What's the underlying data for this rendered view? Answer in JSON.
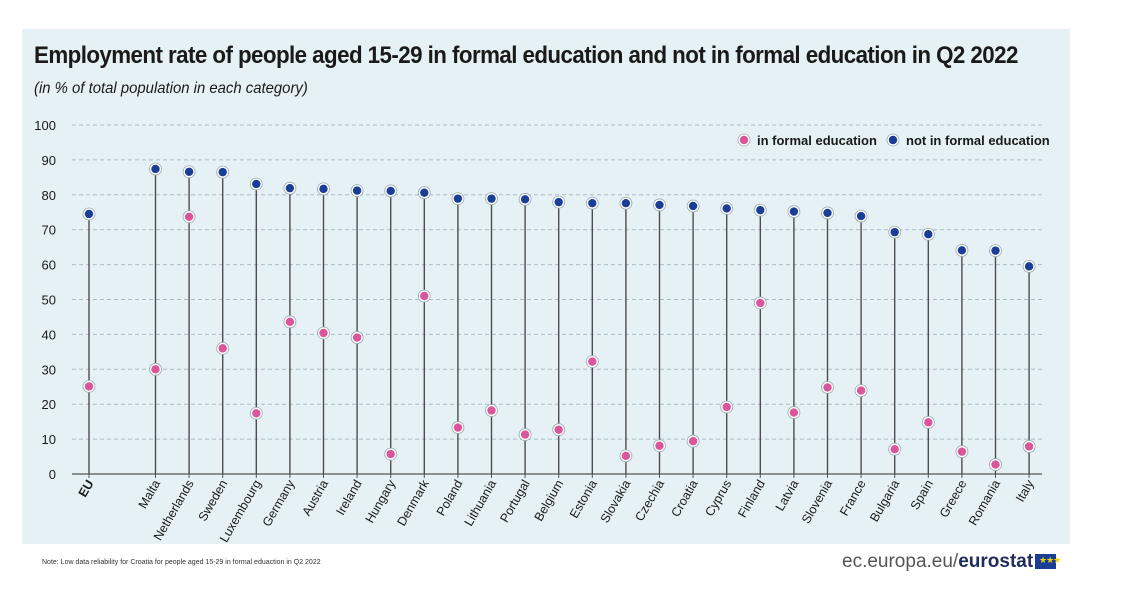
{
  "title": "Employment rate of people aged 15-29 in formal education and not in formal education in Q2 2022",
  "subtitle": "(in % of total population in each category)",
  "note": "Note: Low data reliability for Croatia for people aged 15-29 in formal eduaction in Q2 2022",
  "footer": {
    "prefix": "ec.europa.eu/",
    "brand": "eurostat"
  },
  "chart_data": {
    "type": "scatter",
    "title": "Employment rate of people aged 15-29 in formal education and not in formal education in Q2 2022",
    "ylim": [
      0,
      100
    ],
    "yticks": [
      0,
      10,
      20,
      30,
      40,
      50,
      60,
      70,
      80,
      90,
      100
    ],
    "grid": true,
    "legend_position": "top-right",
    "categories": [
      "EU",
      "Malta",
      "Netherlands",
      "Sweden",
      "Luxembourg",
      "Germany",
      "Austria",
      "Ireland",
      "Hungary",
      "Denmark",
      "Poland",
      "Lithuania",
      "Portugal",
      "Belgium",
      "Estonia",
      "Slovakia",
      "Czechia",
      "Croatia",
      "Cyprus",
      "Finland",
      "Latvia",
      "Slovenia",
      "France",
      "Bulgaria",
      "Spain",
      "Greece",
      "Romania",
      "Italy"
    ],
    "series": [
      {
        "name": "in formal education",
        "color": "#d9569b",
        "values": [
          25.1,
          30.0,
          73.7,
          36.0,
          17.4,
          43.6,
          40.4,
          39.1,
          5.7,
          51.0,
          13.3,
          18.2,
          11.3,
          12.7,
          32.2,
          5.2,
          8.1,
          9.4,
          19.2,
          49.0,
          17.6,
          24.8,
          23.9,
          7.1,
          14.8,
          6.4,
          2.7,
          7.9
        ]
      },
      {
        "name": "not in formal education",
        "color": "#1a3d96",
        "values": [
          74.5,
          87.4,
          86.6,
          86.5,
          83.1,
          81.9,
          81.7,
          81.2,
          81.1,
          80.6,
          78.9,
          78.9,
          78.7,
          77.9,
          77.6,
          77.6,
          77.1,
          76.8,
          76.1,
          75.6,
          75.2,
          74.8,
          73.9,
          69.3,
          68.7,
          64.1,
          64.0,
          59.5
        ]
      }
    ]
  }
}
